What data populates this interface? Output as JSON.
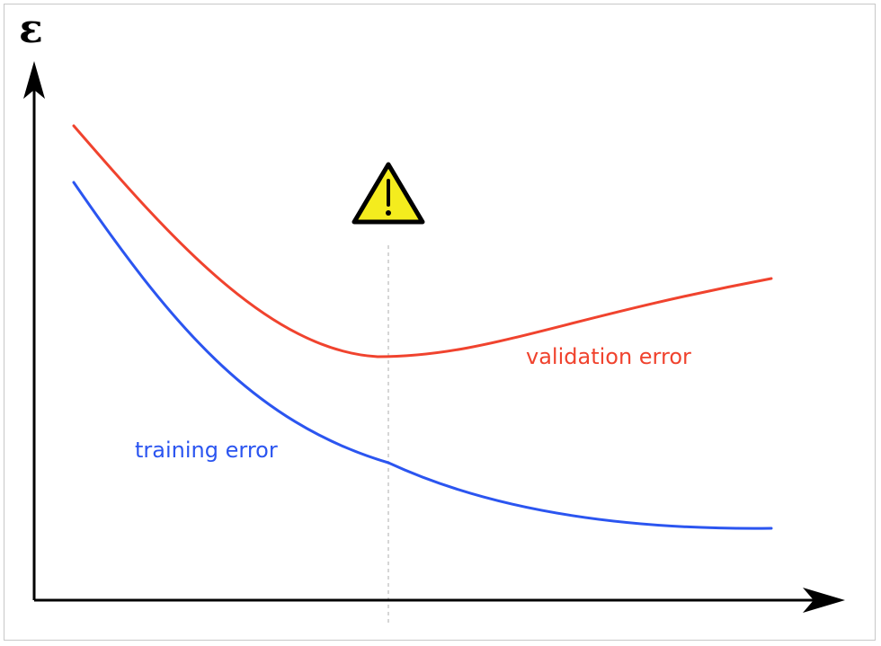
{
  "chart_data": {
    "type": "line",
    "title": "",
    "xlabel": "",
    "ylabel": "ε",
    "grid": false,
    "axis_ticks": false,
    "series": [
      {
        "name": "validation error",
        "color": "#f0432e",
        "shape": "decreases to a minimum, then rises again"
      },
      {
        "name": "training error",
        "color": "#2b55f0",
        "shape": "monotonically decreasing, flattening out"
      }
    ],
    "annotations": [
      {
        "type": "vertical-dashed-line",
        "meaning": "point of minimum validation error",
        "color": "#c8c8c8"
      },
      {
        "type": "warning-icon",
        "icon": "warning-triangle-icon",
        "fill": "#f4ec1e"
      }
    ]
  }
}
